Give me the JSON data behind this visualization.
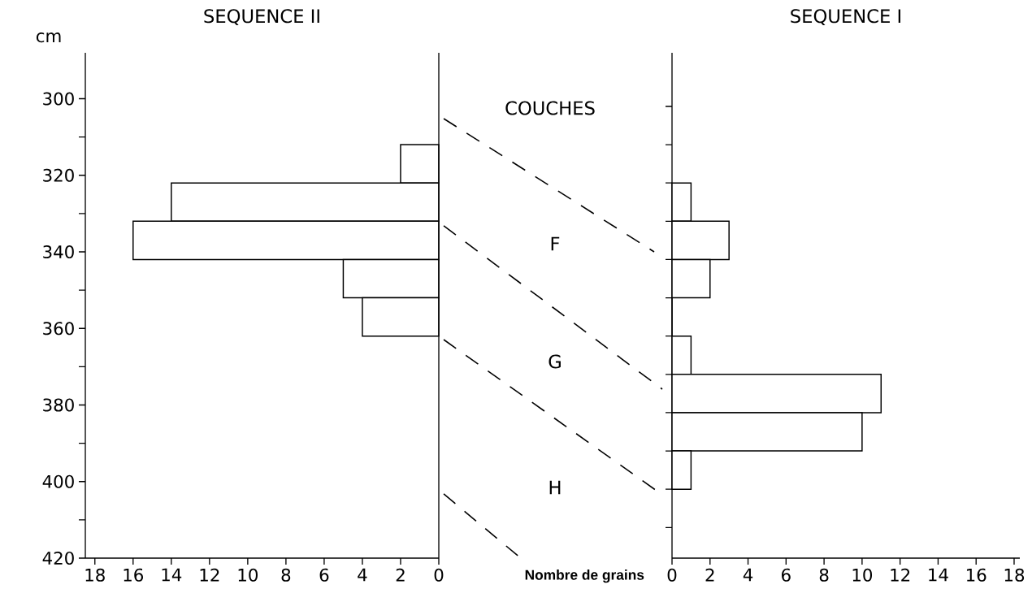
{
  "chart_data": [
    {
      "type": "histogram",
      "orientation": "horizontal",
      "title": "SEQUENCE II",
      "ylabel": "cm",
      "bins": [
        312,
        322,
        332,
        342,
        352,
        362
      ],
      "values": [
        2,
        14,
        16,
        5,
        4
      ],
      "color": "#000000",
      "xlim": [
        18.5,
        0
      ],
      "xticks": [
        0,
        2,
        4,
        6,
        8,
        10,
        12,
        14,
        16,
        18
      ],
      "ylim": [
        420,
        288
      ],
      "yticks": [
        300,
        {
          "value": 310,
          "label": null
        },
        320,
        {
          "value": 330,
          "label": null
        },
        340,
        {
          "value": 350,
          "label": null
        },
        360,
        {
          "value": 370,
          "label": null
        },
        380,
        {
          "value": 390,
          "label": null
        },
        400,
        {
          "value": 410,
          "label": null
        },
        420
      ],
      "ref_lines": [
        {
          "axis": "x",
          "value": 0
        }
      ]
    },
    {
      "type": "histogram",
      "orientation": "horizontal",
      "title": "SEQUENCE I",
      "xlabel": "Nombre de grains",
      "annotations": [
        "COUCHES",
        "F",
        "G",
        "H"
      ],
      "bins": [
        322,
        332,
        342,
        352,
        362,
        372,
        382,
        392,
        402
      ],
      "values": [
        1,
        3,
        2,
        0,
        1,
        11,
        10,
        1
      ],
      "color": "#000000",
      "xlim": [
        0,
        18.3
      ],
      "xticks": [
        0,
        2,
        4,
        6,
        8,
        10,
        12,
        14,
        16,
        18
      ],
      "ylim": [
        420,
        288
      ],
      "yticks": [
        {
          "value": 302,
          "label": null
        },
        {
          "value": 312,
          "label": null
        },
        {
          "value": 322,
          "label": null
        },
        {
          "value": 332,
          "label": null
        },
        {
          "value": 342,
          "label": null
        },
        {
          "value": 352,
          "label": null
        },
        {
          "value": 362,
          "label": null
        },
        {
          "value": 372,
          "label": null
        },
        {
          "value": 382,
          "label": null
        },
        {
          "value": 392,
          "label": null
        },
        {
          "value": 402,
          "label": null
        },
        {
          "value": 412,
          "label": null
        }
      ],
      "tick_labels": "x"
    }
  ]
}
